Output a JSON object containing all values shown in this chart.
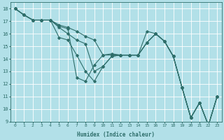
{
  "xlabel": "Humidex (Indice chaleur)",
  "bg_color": "#b2e0e8",
  "grid_color": "#ffffff",
  "line_color": "#2e6e6a",
  "xlim": [
    -0.5,
    23.5
  ],
  "ylim": [
    9,
    18.5
  ],
  "xticks": [
    0,
    1,
    2,
    3,
    4,
    5,
    6,
    7,
    8,
    9,
    10,
    11,
    12,
    13,
    14,
    15,
    16,
    17,
    18,
    19,
    20,
    21,
    22,
    23
  ],
  "yticks": [
    9,
    10,
    11,
    12,
    13,
    14,
    15,
    16,
    17,
    18
  ],
  "series": [
    [
      18.0,
      17.5,
      17.1,
      17.1,
      17.1,
      16.7,
      16.5,
      16.2,
      15.8,
      15.5,
      14.3,
      14.3,
      14.3,
      14.3,
      14.3,
      15.3,
      16.0,
      15.4,
      14.2,
      11.7,
      9.3,
      10.5,
      8.7,
      11.0
    ],
    [
      18.0,
      17.5,
      17.1,
      17.1,
      17.1,
      16.5,
      16.0,
      15.5,
      15.2,
      13.0,
      13.4,
      14.2,
      14.3,
      14.3,
      14.3,
      15.3,
      16.0,
      15.4,
      14.2,
      11.7,
      9.3,
      10.5,
      8.7,
      11.0
    ],
    [
      18.0,
      17.5,
      17.1,
      17.1,
      17.1,
      15.7,
      15.5,
      14.3,
      13.0,
      12.2,
      13.4,
      14.2,
      14.3,
      14.3,
      14.3,
      15.3,
      16.0,
      15.4,
      14.2,
      11.7,
      9.3,
      10.5,
      8.7,
      11.0
    ],
    [
      18.0,
      17.5,
      17.1,
      17.1,
      17.1,
      16.6,
      16.4,
      12.5,
      12.2,
      13.5,
      14.3,
      14.4,
      14.3,
      14.3,
      14.3,
      16.2,
      16.0,
      15.4,
      14.2,
      11.7,
      9.3,
      10.5,
      8.7,
      11.0
    ]
  ]
}
